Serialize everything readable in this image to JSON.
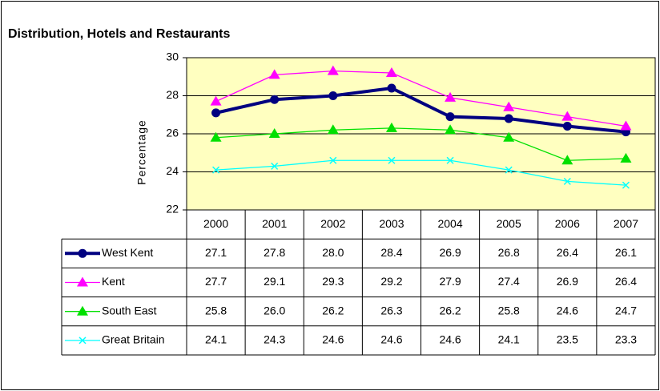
{
  "chart_data": {
    "type": "line",
    "title": "Distribution, Hotels and Restaurants",
    "y_label": "Percentage",
    "categories": [
      "2000",
      "2001",
      "2002",
      "2003",
      "2004",
      "2005",
      "2006",
      "2007"
    ],
    "ylim": [
      22,
      30
    ],
    "yticks": [
      22,
      24,
      26,
      28,
      30
    ],
    "grid": true,
    "plot_background": "#ffffc0",
    "series": [
      {
        "name": "West Kent",
        "color": "#000080",
        "marker": "circle",
        "values": [
          27.1,
          27.8,
          28,
          28.4,
          26.9,
          26.8,
          26.4,
          26.1
        ],
        "value_labels": [
          "27.1",
          "27.8",
          "28.0",
          "28.4",
          "26.9",
          "26.8",
          "26.4",
          "26.1"
        ]
      },
      {
        "name": "Kent",
        "color": "#ff00ff",
        "marker": "triangle",
        "values": [
          27.7,
          29.1,
          29.3,
          29.2,
          27.9,
          27.4,
          26.9,
          26.4
        ],
        "value_labels": [
          "27.7",
          "29.1",
          "29.3",
          "29.2",
          "27.9",
          "27.4",
          "26.9",
          "26.4"
        ]
      },
      {
        "name": "South East",
        "color": "#00e000",
        "marker": "triangle",
        "values": [
          25.8,
          26,
          26.2,
          26.3,
          26.2,
          25.8,
          24.6,
          24.7
        ],
        "value_labels": [
          "25.8",
          "26.0",
          "26.2",
          "26.3",
          "26.2",
          "25.8",
          "24.6",
          "24.7"
        ]
      },
      {
        "name": "Great Britain",
        "color": "#00ffff",
        "marker": "x",
        "values": [
          24.1,
          24.3,
          24.6,
          24.6,
          24.6,
          24.1,
          23.5,
          23.3
        ],
        "value_labels": [
          "24.1",
          "24.3",
          "24.6",
          "24.6",
          "24.6",
          "24.1",
          "23.5",
          "23.3"
        ]
      }
    ]
  }
}
